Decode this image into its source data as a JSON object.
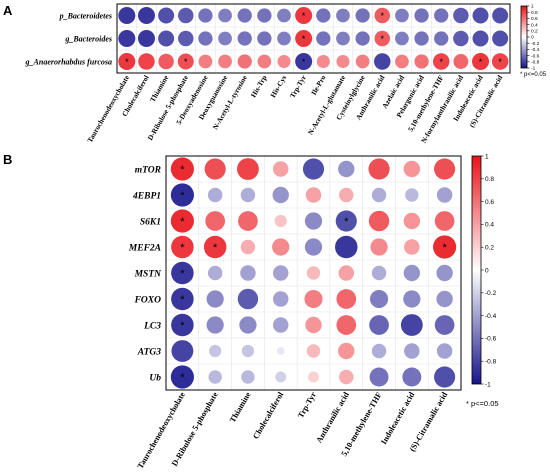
{
  "chart_data": [
    {
      "type": "heatmap",
      "panel": "A",
      "encoding": "circle size and color = correlation coefficient",
      "rows": [
        "p_Bacteroidetes",
        "g_Bacteroides",
        "g_Anaerorhabdus furcosa"
      ],
      "columns": [
        "Taurochenodeoxycholate",
        "Cholecalciferol",
        "Thiamine",
        "D-Ribulose 5-phosphate",
        "5-Deoxyadenosine",
        "Deoxyguanosine",
        "N-Acetyl-L-tyrosine",
        "His-Trp",
        "His-Cys",
        "Trp-Tyr",
        "Ile-Pro",
        "N-Acetyl-L-glutamate",
        "Cysteinylglycine",
        "Anthranilic acid",
        "Azelaic acid",
        "Pelargonic acid",
        "5,10-methylene-THF",
        "N-formylanthranilic acid",
        "Indoleacetic acid",
        "(S)-Citramalic acid"
      ],
      "values": [
        [
          -0.85,
          -0.85,
          -0.75,
          -0.7,
          -0.6,
          -0.55,
          -0.6,
          -0.6,
          -0.55,
          0.85,
          -0.6,
          -0.55,
          -0.6,
          0.7,
          -0.55,
          -0.6,
          -0.6,
          -0.7,
          -0.75,
          -0.75
        ],
        [
          -0.85,
          -0.85,
          -0.75,
          -0.7,
          -0.6,
          -0.55,
          -0.6,
          -0.6,
          -0.55,
          0.85,
          -0.6,
          -0.55,
          -0.6,
          0.7,
          -0.55,
          -0.6,
          -0.6,
          -0.7,
          -0.75,
          -0.75
        ],
        [
          0.85,
          0.8,
          0.7,
          0.75,
          0.55,
          0.55,
          0.6,
          0.55,
          0.5,
          -0.85,
          0.5,
          0.5,
          0.55,
          -0.8,
          0.55,
          0.6,
          0.8,
          0.65,
          0.85,
          0.8
        ]
      ],
      "significant": [
        [
          0,
          9
        ],
        [
          0,
          13
        ],
        [
          1,
          9
        ],
        [
          1,
          13
        ],
        [
          2,
          0
        ],
        [
          2,
          3
        ],
        [
          2,
          9
        ],
        [
          2,
          16
        ],
        [
          2,
          18
        ],
        [
          2,
          19
        ]
      ],
      "colorbar": {
        "min": -1,
        "max": 1,
        "ticks": [
          "1",
          "0.8",
          "0.6",
          "0.4",
          "0.2",
          "0",
          "-0.2",
          "-0.4",
          "-0.6",
          "-0.8",
          "-1"
        ]
      },
      "colors": {
        "positive": "#e8141b",
        "neutral": "#ffffff",
        "negative": "#16148c"
      },
      "note": "* p<=0.05"
    },
    {
      "type": "heatmap",
      "panel": "B",
      "encoding": "circle size and color = correlation coefficient",
      "rows": [
        "mTOR",
        "4EBP1",
        "S6K1",
        "MEF2A",
        "MSTN",
        "FOXO",
        "LC3",
        "ATG3",
        "Ub"
      ],
      "columns": [
        "Taurochenodeoxycholate",
        "D-Ribulose 5-phosphate",
        "Thiamine",
        "Cholecalciferol",
        "Trp-Tyr",
        "Anthranilic acid",
        "5,10-methylene-THF",
        "Indoleacetic acid",
        "(S)-Citramalic acid"
      ],
      "values": [
        [
          0.9,
          0.75,
          0.8,
          0.4,
          -0.75,
          -0.45,
          0.75,
          0.45,
          0.75
        ],
        [
          -0.9,
          -0.35,
          -0.35,
          -0.45,
          0.4,
          0.35,
          -0.35,
          -0.3,
          -0.4
        ],
        [
          0.9,
          0.65,
          0.65,
          0.25,
          -0.5,
          -0.75,
          0.7,
          0.45,
          0.65
        ],
        [
          0.85,
          0.85,
          0.35,
          0.5,
          -0.5,
          -0.85,
          0.5,
          0.4,
          0.9
        ],
        [
          -0.85,
          -0.35,
          -0.4,
          -0.4,
          0.3,
          0.4,
          -0.35,
          -0.45,
          -0.45
        ],
        [
          -0.85,
          -0.5,
          -0.7,
          -0.4,
          0.55,
          0.65,
          -0.55,
          -0.5,
          -0.45
        ],
        [
          -0.85,
          -0.5,
          -0.5,
          -0.4,
          0.45,
          0.65,
          -0.65,
          -0.8,
          -0.65
        ],
        [
          -0.8,
          -0.25,
          -0.25,
          -0.1,
          0.3,
          0.45,
          -0.35,
          -0.4,
          -0.4
        ],
        [
          -0.9,
          -0.3,
          -0.3,
          -0.2,
          0.2,
          0.35,
          -0.6,
          -0.6,
          -0.75
        ]
      ],
      "significant": [
        [
          0,
          0
        ],
        [
          1,
          0
        ],
        [
          2,
          0
        ],
        [
          2,
          5
        ],
        [
          3,
          0
        ],
        [
          3,
          1
        ],
        [
          3,
          8
        ],
        [
          4,
          0
        ],
        [
          5,
          0
        ],
        [
          6,
          0
        ],
        [
          8,
          0
        ]
      ],
      "colorbar": {
        "min": -1,
        "max": 1,
        "ticks": [
          "1",
          "0.8",
          "0.6",
          "0.4",
          "0.2",
          "0",
          "-0.2",
          "-0.4",
          "-0.6",
          "-0.8",
          "-1"
        ]
      },
      "colors": {
        "positive": "#e8141b",
        "neutral": "#ffffff",
        "negative": "#16148c"
      },
      "note": "* p<=0.05"
    }
  ]
}
